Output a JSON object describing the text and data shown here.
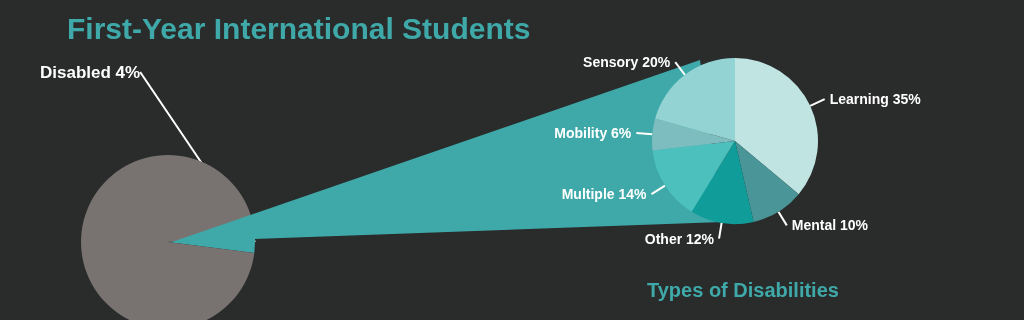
{
  "chart_data": [
    {
      "type": "pie",
      "title": "First-Year International Students",
      "categories": [
        "Disabled",
        null
      ],
      "values": [
        4,
        96
      ],
      "value_labels": [
        "4%",
        null
      ],
      "colors": [
        "#3fa9a9",
        "#787370"
      ],
      "legend": false
    },
    {
      "type": "pie",
      "title": "Types of Disabilities",
      "categories": [
        "Learning",
        "Mental",
        "Other",
        "Multiple",
        "Mobility",
        "Sensory"
      ],
      "values": [
        35,
        10,
        12,
        14,
        6,
        20
      ],
      "value_labels": [
        "35%",
        "10%",
        "12%",
        "14%",
        "6%",
        "20%"
      ],
      "colors": [
        "#c0e4e2",
        "#4a9597",
        "#109d9a",
        "#4bc0bd",
        "#7dbdbf",
        "#93d3d3"
      ],
      "legend": false
    }
  ]
}
